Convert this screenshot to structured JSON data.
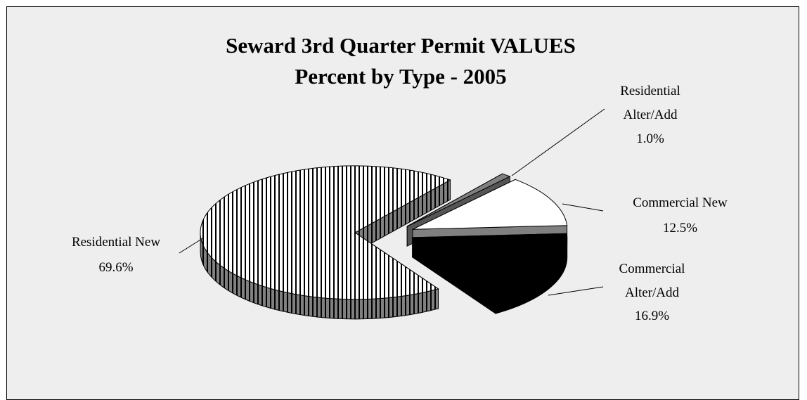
{
  "chart_data": {
    "type": "pie3d",
    "title": "Seward 3rd Quarter Permit VALUES",
    "subtitle": "Percent by Type - 2005",
    "categories": [
      "Residential Alter/Add",
      "Commercial New",
      "Commercial Alter/Add",
      "Residential New"
    ],
    "values": [
      1.0,
      12.5,
      16.9,
      69.6
    ],
    "value_labels": [
      "1.0%",
      "12.5%",
      "16.9%",
      "69.6%"
    ],
    "colors": [
      "#808080",
      "#ffffff",
      "#000000",
      "#ffffff"
    ],
    "hatch": [
      false,
      false,
      false,
      true
    ]
  }
}
